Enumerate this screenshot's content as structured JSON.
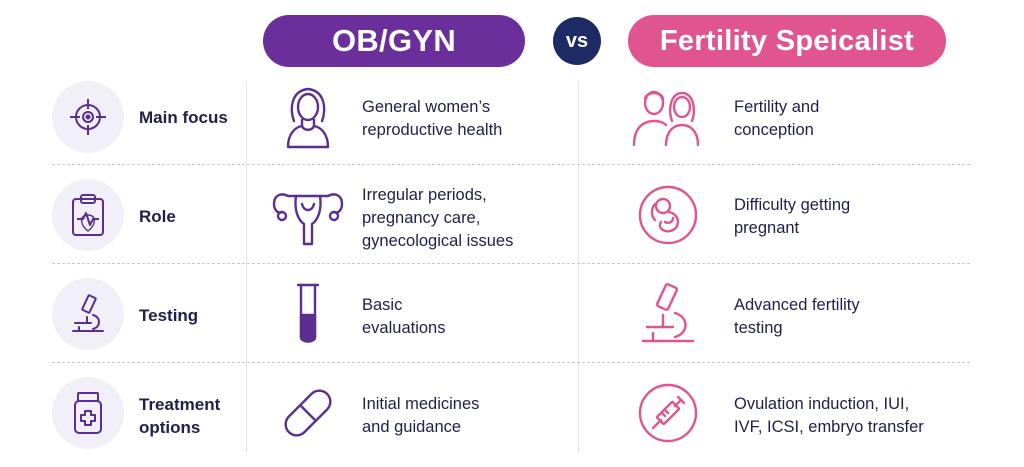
{
  "header": {
    "left_title": "OB/GYN",
    "vs_label": "vs",
    "right_title": "Fertility Speicalist"
  },
  "colors": {
    "purple": "#6a2f9b",
    "pink": "#e0558f",
    "navy": "#1d2a63",
    "icon_bg": "#f1eff8"
  },
  "rows": [
    {
      "label": "Main focus",
      "icon": "target-icon",
      "ob_icon": "woman-icon",
      "ob_text": "General women’s\nreproductive health",
      "fs_icon": "couple-icon",
      "fs_text": "Fertility and\nconception"
    },
    {
      "label": "Role",
      "icon": "clipboard-heartbeat-icon",
      "ob_icon": "uterus-icon",
      "ob_text": "Irregular periods,\npregnancy care,\ngynecological issues",
      "fs_icon": "fetus-icon",
      "fs_text": "Difficulty getting\npregnant"
    },
    {
      "label": "Testing",
      "icon": "microscope-icon",
      "ob_icon": "test-tube-icon",
      "ob_text": "Basic\nevaluations",
      "fs_icon": "microscope-icon",
      "fs_text": "Advanced fertility\ntesting"
    },
    {
      "label": "Treatment\noptions",
      "icon": "medicine-bottle-icon",
      "ob_icon": "pill-icon",
      "ob_text": "Initial medicines\nand guidance",
      "fs_icon": "syringe-icon",
      "fs_text": "Ovulation induction, IUI,\nIVF, ICSI, embryo transfer"
    }
  ]
}
